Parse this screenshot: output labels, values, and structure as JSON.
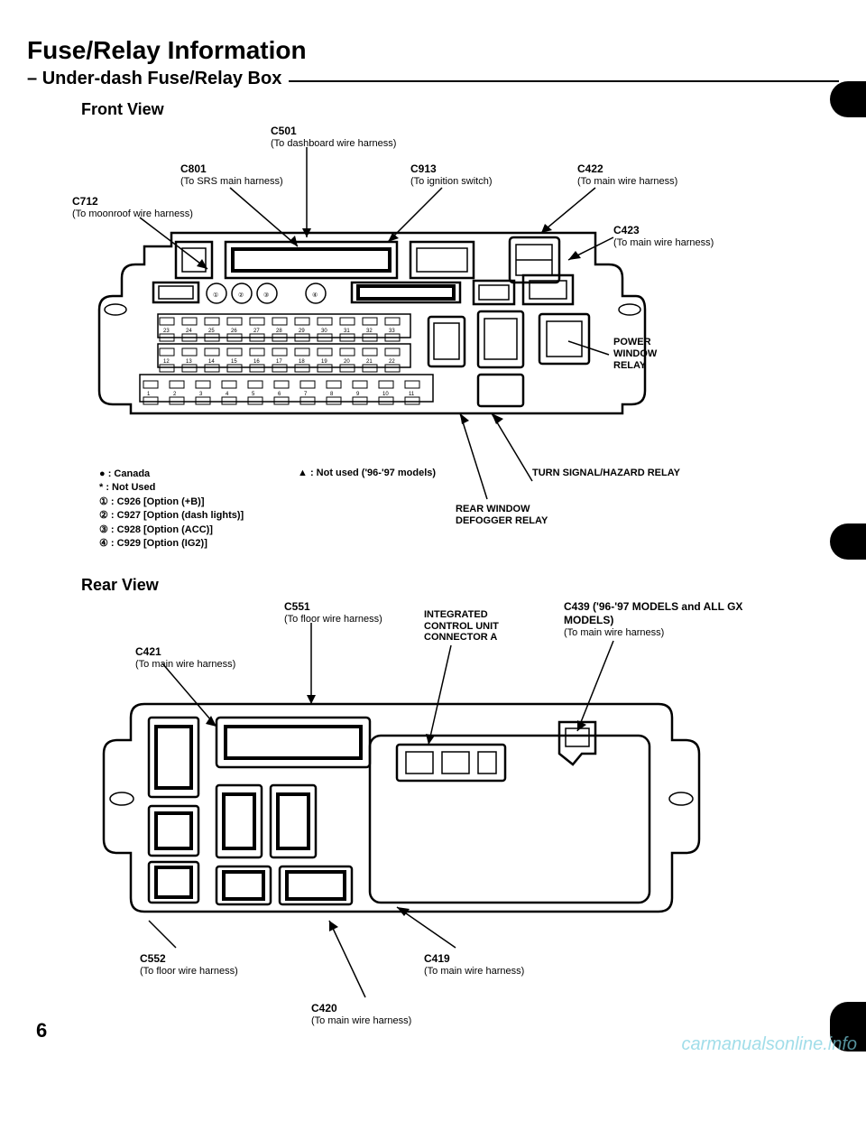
{
  "title": "Fuse/Relay Information",
  "subtitle": "Under-dash Fuse/Relay Box",
  "front_view_label": "Front View",
  "rear_view_label": "Rear View",
  "page_number": "6",
  "watermark": "carmanualsonline.info",
  "front": {
    "c501": {
      "code": "C501",
      "desc": "(To dashboard wire harness)"
    },
    "c801": {
      "code": "C801",
      "desc": "(To SRS main harness)"
    },
    "c913": {
      "code": "C913",
      "desc": "(To ignition switch)"
    },
    "c422": {
      "code": "C422",
      "desc": "(To main wire harness)"
    },
    "c712": {
      "code": "C712",
      "desc": "(To moonroof wire harness)"
    },
    "c423": {
      "code": "C423",
      "desc": "(To main wire harness)"
    },
    "power_window": "POWER\nWINDOW\nRELAY",
    "turn_signal": "TURN  SIGNAL/HAZARD RELAY",
    "rear_defog": "REAR WINDOW\nDEFOGGER RELAY",
    "not_used": "▲  : Not used ('96-'97 models)",
    "slot_row1": [
      "23",
      "24",
      "25",
      "26",
      "27",
      "28",
      "29",
      "30",
      "31",
      "32",
      "33"
    ],
    "slot_row2": [
      "12",
      "13",
      "14",
      "15",
      "16",
      "17",
      "18",
      "19",
      "20",
      "21",
      "22"
    ],
    "slot_row3": [
      "1",
      "2",
      "3",
      "4",
      "5",
      "6",
      "7",
      "8",
      "9",
      "10",
      "11"
    ]
  },
  "legend": {
    "l1": "●  : Canada",
    "l2": "*  : Not Used",
    "l3": "①  : C926 [Option (+B)]",
    "l4": "②  : C927 [Option (dash lights)]",
    "l5": "③  : C928 [Option (ACC)]",
    "l6": "④  : C929 [Option (IG2)]"
  },
  "rear": {
    "c551": {
      "code": "C551",
      "desc": "(To floor wire harness)"
    },
    "c421": {
      "code": "C421",
      "desc": "(To main wire harness)"
    },
    "icu": {
      "l1": "INTEGRATED",
      "l2": "CONTROL UNIT",
      "l3": "CONNECTOR A"
    },
    "c439": {
      "code": "C439 ('96-'97 MODELS and ALL GX MODELS)",
      "desc": "(To main wire harness)"
    },
    "c552": {
      "code": "C552",
      "desc": "(To floor wire harness)"
    },
    "c419": {
      "code": "C419",
      "desc": "(To main wire harness)"
    },
    "c420": {
      "code": "C420",
      "desc": "(To main wire harness)"
    }
  }
}
